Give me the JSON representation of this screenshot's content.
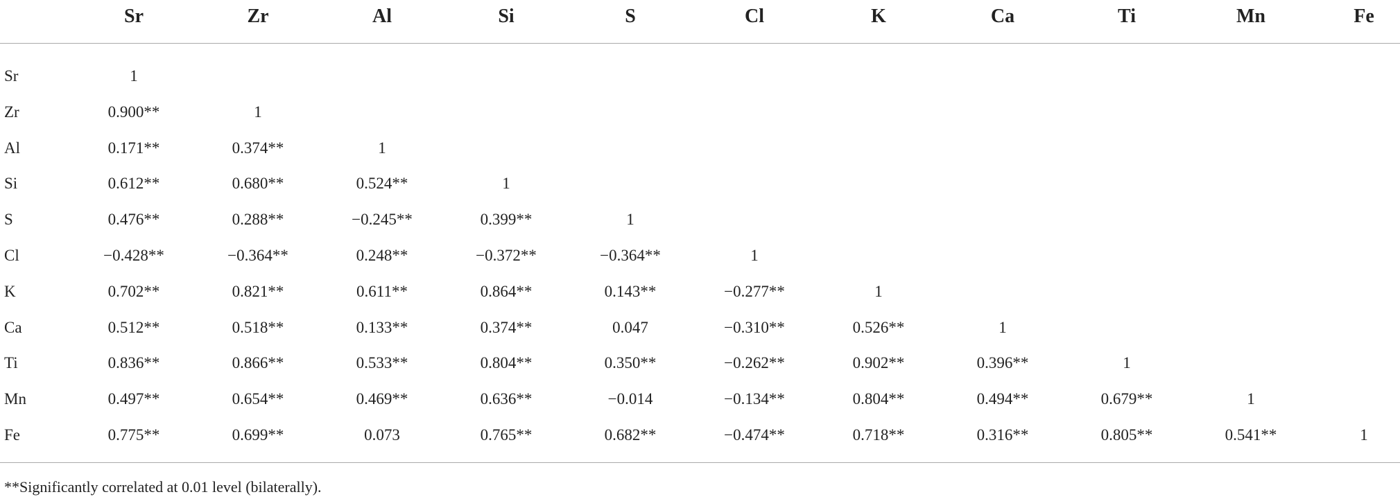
{
  "table": {
    "header": [
      "Sr",
      "Zr",
      "Al",
      "Si",
      "S",
      "Cl",
      "K",
      "Ca",
      "Ti",
      "Mn",
      "Fe"
    ],
    "rows": [
      [
        "Sr",
        "1"
      ],
      [
        "Zr",
        "0.900**",
        "1"
      ],
      [
        "Al",
        "0.171**",
        "0.374**",
        "1"
      ],
      [
        "Si",
        "0.612**",
        "0.680**",
        "0.524**",
        "1"
      ],
      [
        "S",
        "0.476**",
        "0.288**",
        "−0.245**",
        "0.399**",
        "1"
      ],
      [
        "Cl",
        "−0.428**",
        "−0.364**",
        "0.248**",
        "−0.372**",
        "−0.364**",
        "1"
      ],
      [
        "K",
        "0.702**",
        "0.821**",
        "0.611**",
        "0.864**",
        "0.143**",
        "−0.277**",
        "1"
      ],
      [
        "Ca",
        "0.512**",
        "0.518**",
        "0.133**",
        "0.374**",
        "0.047",
        "−0.310**",
        "0.526**",
        "1"
      ],
      [
        "Ti",
        "0.836**",
        "0.866**",
        "0.533**",
        "0.804**",
        "0.350**",
        "−0.262**",
        "0.902**",
        "0.396**",
        "1"
      ],
      [
        "Mn",
        "0.497**",
        "0.654**",
        "0.469**",
        "0.636**",
        "−0.014",
        "−0.134**",
        "0.804**",
        "0.494**",
        "0.679**",
        "1"
      ],
      [
        "Fe",
        "0.775**",
        "0.699**",
        "0.073",
        "0.765**",
        "0.682**",
        "−0.474**",
        "0.718**",
        "0.316**",
        "0.805**",
        "0.541**",
        "1"
      ]
    ],
    "footnote": "**Significantly correlated at 0.01 level (bilaterally)."
  }
}
